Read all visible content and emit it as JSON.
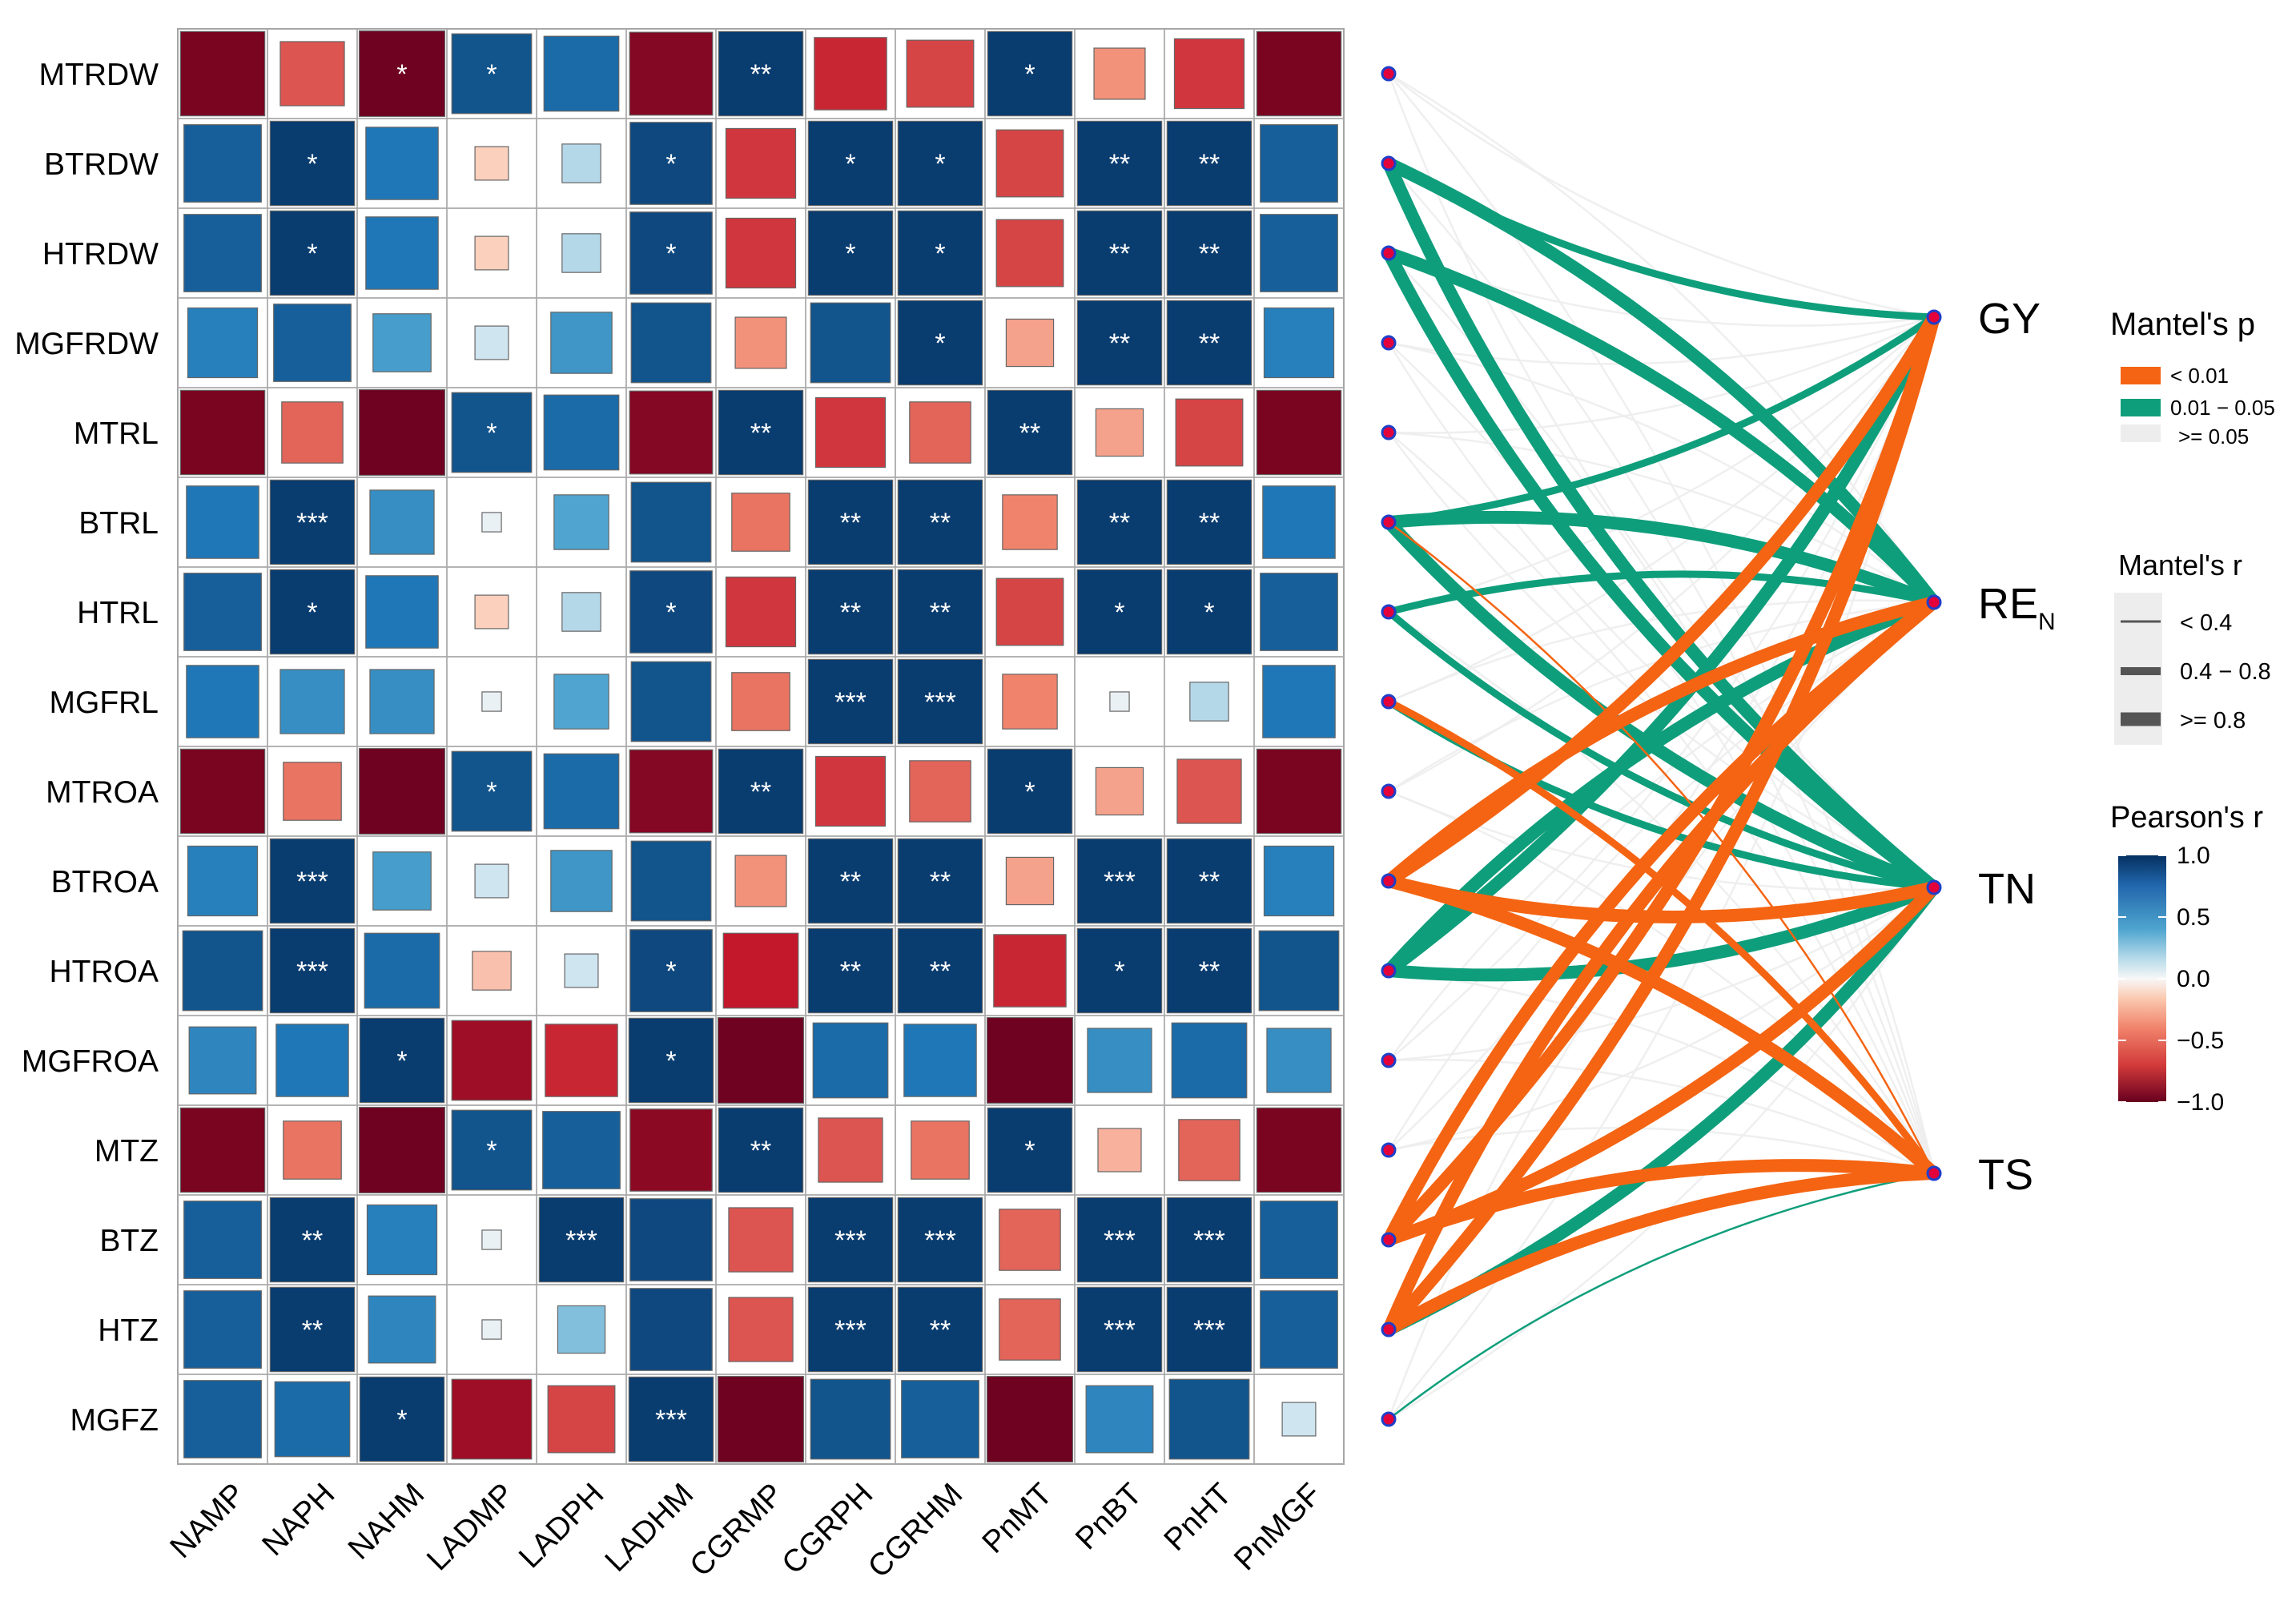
{
  "chart_data": {
    "type": "heatmap",
    "rows": [
      "MTRDW",
      "BTRDW",
      "HTRDW",
      "MGFRDW",
      "MTRL",
      "BTRL",
      "HTRL",
      "MGFRL",
      "MTROA",
      "BTROA",
      "HTROA",
      "MGFROA",
      "MTZ",
      "BTZ",
      "HTZ",
      "MGFZ"
    ],
    "cols": [
      "NAMP",
      "NAPH",
      "NAHM",
      "LADMP",
      "LADPH",
      "LADHM",
      "CGRMP",
      "CGRPH",
      "CGRHM",
      "PnMT",
      "PnBT",
      "PnHT",
      "PnMGF"
    ],
    "values": [
      [
        -0.95,
        -0.55,
        -0.98,
        0.85,
        0.75,
        -0.92,
        0.95,
        -0.7,
        -0.6,
        0.95,
        -0.35,
        -0.65,
        -0.95
      ],
      [
        0.8,
        0.95,
        0.7,
        -0.15,
        0.2,
        0.9,
        -0.65,
        0.95,
        0.95,
        -0.6,
        0.95,
        0.95,
        0.8
      ],
      [
        0.8,
        0.95,
        0.7,
        -0.15,
        0.2,
        0.9,
        -0.65,
        0.95,
        0.95,
        -0.6,
        0.95,
        0.95,
        0.8
      ],
      [
        0.65,
        0.8,
        0.45,
        0.15,
        0.5,
        0.85,
        -0.35,
        0.85,
        0.95,
        -0.3,
        0.95,
        0.95,
        0.65
      ],
      [
        -0.95,
        -0.5,
        -0.98,
        0.85,
        0.75,
        -0.92,
        0.95,
        -0.65,
        -0.5,
        0.95,
        -0.3,
        -0.6,
        -0.95
      ],
      [
        0.7,
        0.95,
        0.55,
        0.05,
        0.4,
        0.85,
        -0.45,
        0.95,
        0.95,
        -0.4,
        0.95,
        0.95,
        0.7
      ],
      [
        0.8,
        0.95,
        0.7,
        -0.15,
        0.2,
        0.9,
        -0.65,
        0.95,
        0.95,
        -0.6,
        0.95,
        0.95,
        0.8
      ],
      [
        0.7,
        0.55,
        0.55,
        0.05,
        0.4,
        0.85,
        -0.45,
        0.95,
        0.95,
        -0.4,
        0.05,
        0.2,
        0.7
      ],
      [
        -0.95,
        -0.45,
        -0.98,
        0.85,
        0.75,
        -0.92,
        0.95,
        -0.65,
        -0.5,
        0.95,
        -0.3,
        -0.55,
        -0.95
      ],
      [
        0.65,
        0.95,
        0.45,
        0.15,
        0.5,
        0.85,
        -0.35,
        0.95,
        0.95,
        -0.3,
        0.95,
        0.95,
        0.65
      ],
      [
        0.85,
        0.95,
        0.75,
        -0.2,
        0.15,
        0.9,
        -0.75,
        0.95,
        0.95,
        -0.7,
        0.95,
        0.95,
        0.85
      ],
      [
        0.6,
        0.7,
        0.95,
        -0.85,
        -0.7,
        0.95,
        -0.98,
        0.75,
        0.7,
        -0.98,
        0.55,
        0.75,
        0.55
      ],
      [
        -0.95,
        -0.45,
        -0.98,
        0.85,
        0.8,
        -0.9,
        0.95,
        -0.55,
        -0.45,
        0.95,
        -0.25,
        -0.5,
        -0.95
      ],
      [
        0.8,
        0.95,
        0.65,
        0.05,
        0.95,
        0.9,
        -0.55,
        0.95,
        0.95,
        -0.5,
        0.95,
        0.95,
        0.8
      ],
      [
        0.8,
        0.95,
        0.6,
        0.05,
        0.3,
        0.9,
        -0.55,
        0.95,
        0.95,
        -0.5,
        0.95,
        0.95,
        0.8
      ],
      [
        0.8,
        0.75,
        0.95,
        -0.85,
        -0.6,
        0.95,
        -0.98,
        0.85,
        0.8,
        -0.98,
        0.6,
        0.85,
        0.15
      ]
    ],
    "stars": [
      [
        "",
        "",
        "*",
        "*",
        "",
        "",
        "**",
        "",
        "",
        "*",
        "",
        "",
        ""
      ],
      [
        "",
        "*",
        "",
        "",
        "",
        "*",
        "",
        "*",
        "*",
        "",
        "**",
        "**",
        ""
      ],
      [
        "",
        "*",
        "",
        "",
        "",
        "*",
        "",
        "*",
        "*",
        "",
        "**",
        "**",
        ""
      ],
      [
        "",
        "",
        "",
        "",
        "",
        "",
        "",
        "",
        "*",
        "",
        "**",
        "**",
        ""
      ],
      [
        "",
        "",
        "",
        "*",
        "",
        "",
        "**",
        "",
        "",
        "**",
        "",
        "",
        ""
      ],
      [
        "",
        "***",
        "",
        "",
        "",
        "",
        "",
        "**",
        "**",
        "",
        "**",
        "**",
        ""
      ],
      [
        "",
        "*",
        "",
        "",
        "",
        "*",
        "",
        "**",
        "**",
        "",
        "*",
        "*",
        ""
      ],
      [
        "",
        "",
        "",
        "",
        "",
        "",
        "",
        "***",
        "***",
        "",
        "",
        "",
        ""
      ],
      [
        "",
        "",
        "",
        "*",
        "",
        "",
        "**",
        "",
        "",
        "*",
        "",
        "",
        ""
      ],
      [
        "",
        "***",
        "",
        "",
        "",
        "",
        "",
        "**",
        "**",
        "",
        "***",
        "**",
        ""
      ],
      [
        "",
        "***",
        "",
        "",
        "",
        "*",
        "",
        "**",
        "**",
        "",
        "*",
        "**",
        ""
      ],
      [
        "",
        "",
        "*",
        "",
        "",
        "*",
        "",
        "",
        "",
        "",
        "",
        "",
        ""
      ],
      [
        "",
        "",
        "",
        "*",
        "",
        "",
        "**",
        "",
        "",
        "*",
        "",
        "",
        ""
      ],
      [
        "",
        "**",
        "",
        "",
        "***",
        "",
        "",
        "***",
        "***",
        "",
        "***",
        "***",
        ""
      ],
      [
        "",
        "**",
        "",
        "",
        "",
        "",
        "",
        "***",
        "**",
        "",
        "***",
        "***",
        ""
      ],
      [
        "",
        "",
        "*",
        "",
        "",
        "***",
        "",
        "",
        "",
        "",
        "",
        "",
        ""
      ]
    ],
    "targets": [
      "GY",
      "RE",
      "TN",
      "TS"
    ],
    "target_subscript": [
      "",
      "N",
      "",
      ""
    ],
    "links": [
      {
        "from": 0,
        "to": 0,
        "p": "ns",
        "r": 1
      },
      {
        "from": 0,
        "to": 1,
        "p": "ns",
        "r": 1
      },
      {
        "from": 0,
        "to": 2,
        "p": "ns",
        "r": 1
      },
      {
        "from": 0,
        "to": 3,
        "p": "ns",
        "r": 1
      },
      {
        "from": 1,
        "to": 0,
        "p": "mid",
        "r": 2
      },
      {
        "from": 1,
        "to": 1,
        "p": "mid",
        "r": 3
      },
      {
        "from": 1,
        "to": 2,
        "p": "mid",
        "r": 3
      },
      {
        "from": 1,
        "to": 3,
        "p": "ns",
        "r": 1
      },
      {
        "from": 2,
        "to": 0,
        "p": "ns",
        "r": 1
      },
      {
        "from": 2,
        "to": 1,
        "p": "mid",
        "r": 3
      },
      {
        "from": 2,
        "to": 2,
        "p": "mid",
        "r": 3
      },
      {
        "from": 2,
        "to": 3,
        "p": "ns",
        "r": 1
      },
      {
        "from": 3,
        "to": 0,
        "p": "ns",
        "r": 1
      },
      {
        "from": 3,
        "to": 1,
        "p": "ns",
        "r": 1
      },
      {
        "from": 3,
        "to": 2,
        "p": "ns",
        "r": 1
      },
      {
        "from": 3,
        "to": 3,
        "p": "ns",
        "r": 1
      },
      {
        "from": 4,
        "to": 0,
        "p": "ns",
        "r": 1
      },
      {
        "from": 4,
        "to": 1,
        "p": "ns",
        "r": 1
      },
      {
        "from": 4,
        "to": 2,
        "p": "ns",
        "r": 1
      },
      {
        "from": 4,
        "to": 3,
        "p": "ns",
        "r": 1
      },
      {
        "from": 5,
        "to": 0,
        "p": "mid",
        "r": 2
      },
      {
        "from": 5,
        "to": 1,
        "p": "mid",
        "r": 3
      },
      {
        "from": 5,
        "to": 2,
        "p": "mid",
        "r": 3
      },
      {
        "from": 5,
        "to": 3,
        "p": "lt",
        "r": 1
      },
      {
        "from": 6,
        "to": 0,
        "p": "ns",
        "r": 1
      },
      {
        "from": 6,
        "to": 1,
        "p": "mid",
        "r": 2
      },
      {
        "from": 6,
        "to": 2,
        "p": "mid",
        "r": 2
      },
      {
        "from": 6,
        "to": 3,
        "p": "ns",
        "r": 1
      },
      {
        "from": 7,
        "to": 0,
        "p": "ns",
        "r": 1
      },
      {
        "from": 7,
        "to": 1,
        "p": "ns",
        "r": 1
      },
      {
        "from": 7,
        "to": 2,
        "p": "mid",
        "r": 2
      },
      {
        "from": 7,
        "to": 3,
        "p": "lt",
        "r": 2
      },
      {
        "from": 8,
        "to": 0,
        "p": "ns",
        "r": 1
      },
      {
        "from": 8,
        "to": 1,
        "p": "ns",
        "r": 1
      },
      {
        "from": 8,
        "to": 2,
        "p": "ns",
        "r": 1
      },
      {
        "from": 8,
        "to": 3,
        "p": "ns",
        "r": 1
      },
      {
        "from": 9,
        "to": 0,
        "p": "lt",
        "r": 3
      },
      {
        "from": 9,
        "to": 1,
        "p": "lt",
        "r": 3
      },
      {
        "from": 9,
        "to": 2,
        "p": "lt",
        "r": 3
      },
      {
        "from": 9,
        "to": 3,
        "p": "lt",
        "r": 3
      },
      {
        "from": 10,
        "to": 0,
        "p": "mid",
        "r": 3
      },
      {
        "from": 10,
        "to": 1,
        "p": "mid",
        "r": 3
      },
      {
        "from": 10,
        "to": 2,
        "p": "mid",
        "r": 3
      },
      {
        "from": 10,
        "to": 3,
        "p": "ns",
        "r": 1
      },
      {
        "from": 11,
        "to": 0,
        "p": "ns",
        "r": 1
      },
      {
        "from": 11,
        "to": 1,
        "p": "ns",
        "r": 1
      },
      {
        "from": 11,
        "to": 2,
        "p": "ns",
        "r": 1
      },
      {
        "from": 11,
        "to": 3,
        "p": "ns",
        "r": 1
      },
      {
        "from": 12,
        "to": 0,
        "p": "ns",
        "r": 1
      },
      {
        "from": 12,
        "to": 1,
        "p": "ns",
        "r": 1
      },
      {
        "from": 12,
        "to": 2,
        "p": "ns",
        "r": 1
      },
      {
        "from": 12,
        "to": 3,
        "p": "ns",
        "r": 1
      },
      {
        "from": 13,
        "to": 0,
        "p": "lt",
        "r": 3
      },
      {
        "from": 13,
        "to": 1,
        "p": "lt",
        "r": 3
      },
      {
        "from": 13,
        "to": 2,
        "p": "lt",
        "r": 3
      },
      {
        "from": 13,
        "to": 3,
        "p": "lt",
        "r": 3
      },
      {
        "from": 14,
        "to": 0,
        "p": "lt",
        "r": 3
      },
      {
        "from": 14,
        "to": 1,
        "p": "lt",
        "r": 3
      },
      {
        "from": 14,
        "to": 2,
        "p": "mid",
        "r": 3
      },
      {
        "from": 14,
        "to": 3,
        "p": "lt",
        "r": 3
      },
      {
        "from": 15,
        "to": 0,
        "p": "ns",
        "r": 1
      },
      {
        "from": 15,
        "to": 1,
        "p": "ns",
        "r": 1
      },
      {
        "from": 15,
        "to": 2,
        "p": "ns",
        "r": 1
      },
      {
        "from": 15,
        "to": 3,
        "p": "mid",
        "r": 1
      }
    ],
    "legend": {
      "mantel_p_title": "Mantel's p",
      "mantel_p_items": [
        "< 0.01",
        "0.01 − 0.05",
        ">= 0.05"
      ],
      "mantel_r_title": "Mantel's r",
      "mantel_r_items": [
        "< 0.4",
        "0.4 − 0.8",
        ">= 0.8"
      ],
      "pearson_title": "Pearson's r",
      "pearson_ticks": [
        "1.0",
        "0.5",
        "0.0",
        "−0.5",
        "−1.0"
      ],
      "pearson_tick_values": [
        1.0,
        0.5,
        0.0,
        -0.5,
        -1.0
      ]
    },
    "colors": {
      "p_lt": "#f46412",
      "p_mid": "#0f9e7b",
      "p_ns": "#ededed",
      "node_fill": "#e4003a",
      "node_stroke": "#1f3fc9",
      "neg": "#67001f",
      "neg_mid": "#f0836b",
      "zero": "#f7f7f7",
      "pos_mid": "#4fa5cf",
      "pos": "#053061"
    }
  }
}
